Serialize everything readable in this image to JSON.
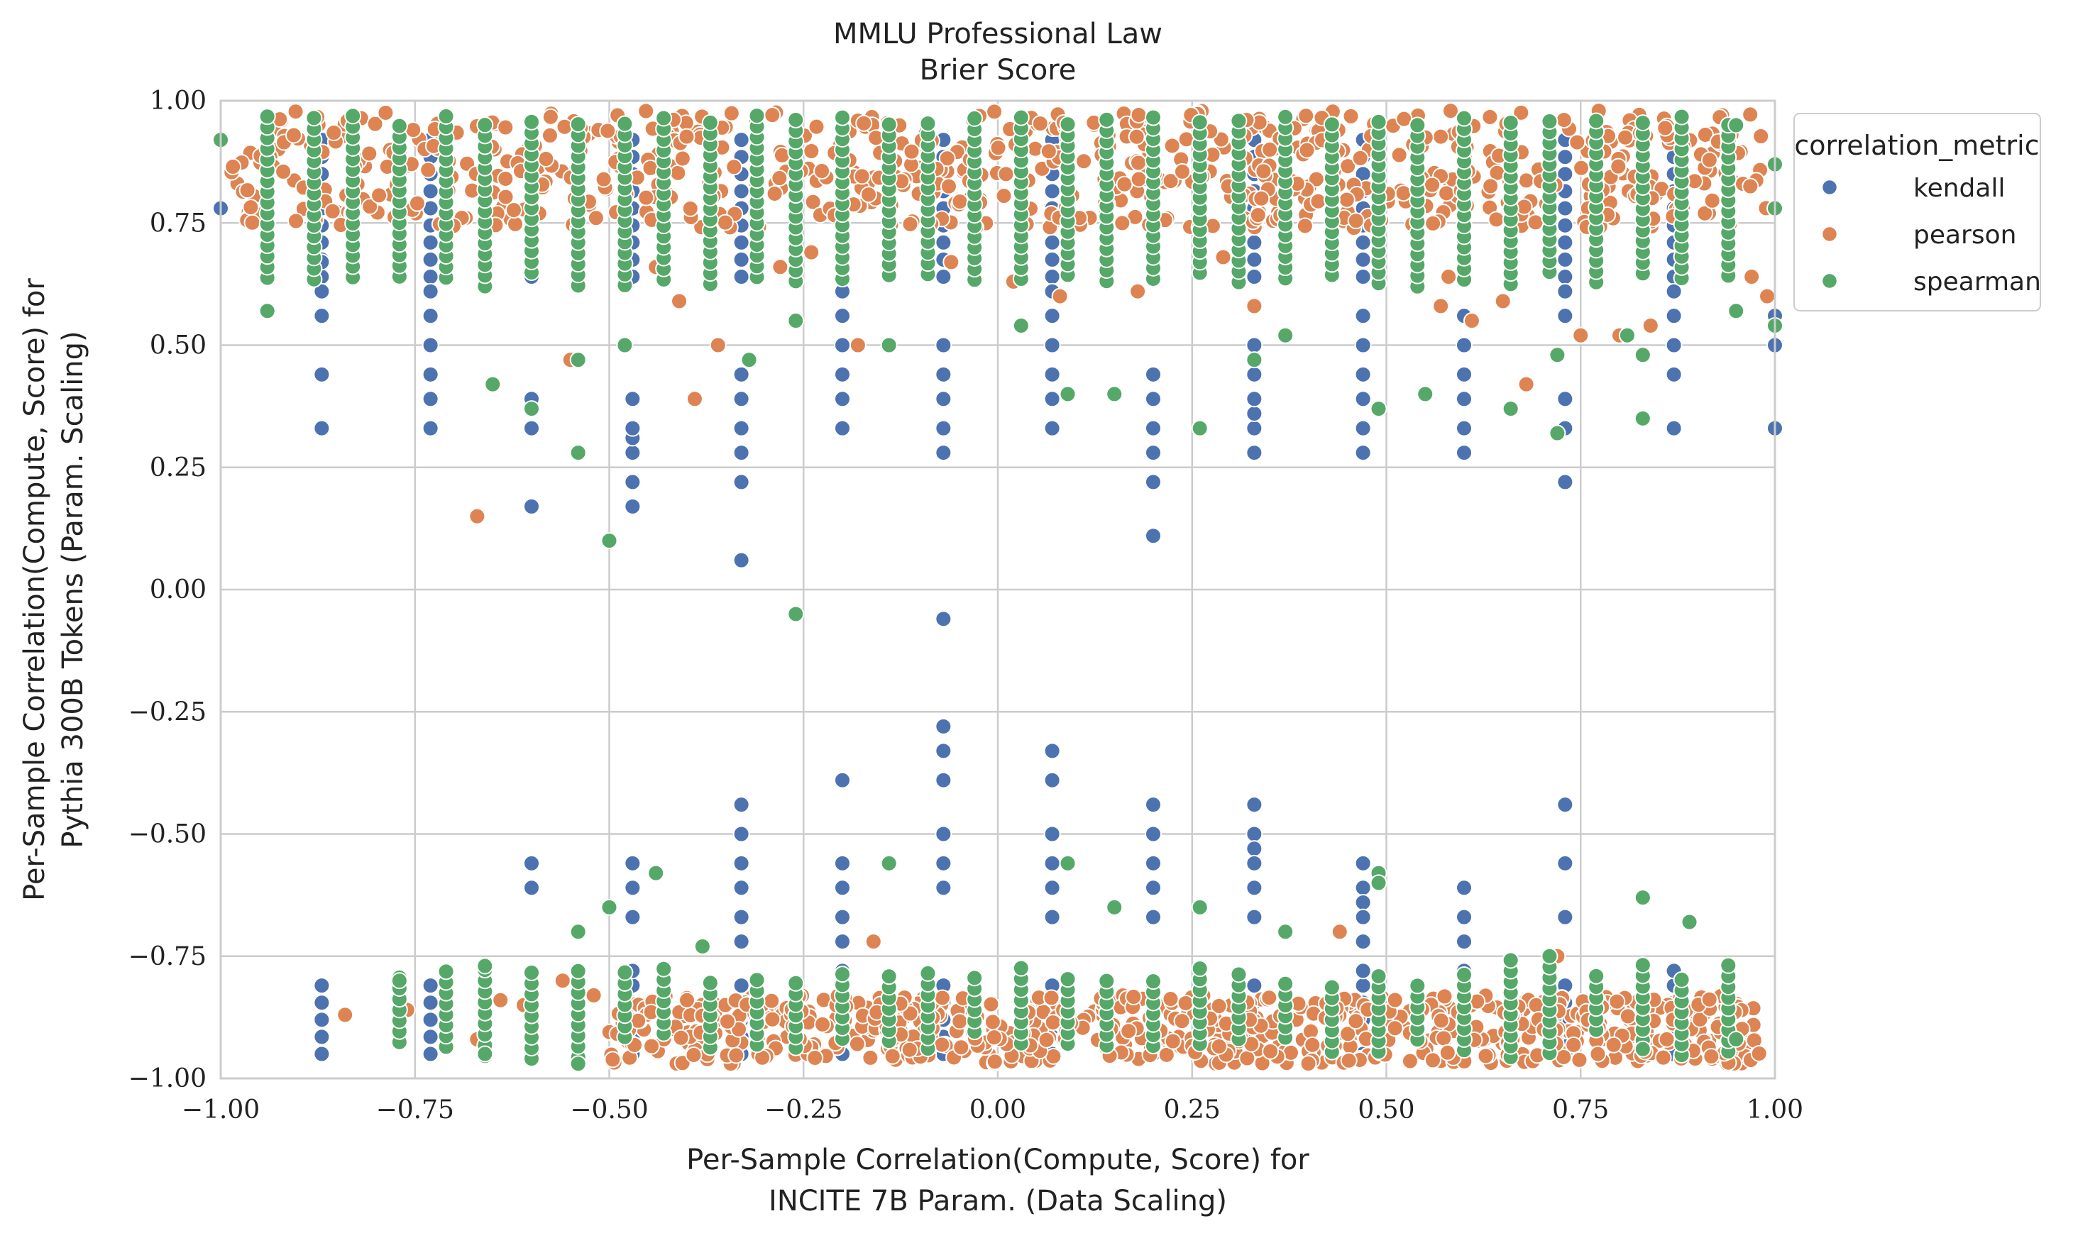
{
  "chart_data": {
    "type": "scatter",
    "title": "MMLU Professional Law",
    "subtitle": "Brier Score",
    "xlabel_line1": "Per-Sample Correlation(Compute, Score) for",
    "xlabel_line2": "INCITE 7B Param. (Data Scaling)",
    "ylabel_line1": "Per-Sample Correlation(Compute, Score) for",
    "ylabel_line2": "Pythia 300B Tokens (Param. Scaling)",
    "xlim": [
      -1.0,
      1.0
    ],
    "ylim": [
      -1.0,
      1.0
    ],
    "x_ticks": [
      -1.0,
      -0.75,
      -0.5,
      -0.25,
      0.0,
      0.25,
      0.5,
      0.75,
      1.0
    ],
    "x_tick_labels": [
      "−1.00",
      "−0.75",
      "−0.50",
      "−0.25",
      "0.00",
      "0.25",
      "0.50",
      "0.75",
      "1.00"
    ],
    "y_ticks": [
      -1.0,
      -0.75,
      -0.5,
      -0.25,
      0.0,
      0.25,
      0.5,
      0.75,
      1.0
    ],
    "y_tick_labels": [
      "−1.00",
      "−0.75",
      "−0.50",
      "−0.25",
      "0.00",
      "0.25",
      "0.50",
      "0.75",
      "1.00"
    ],
    "grid": true,
    "legend": {
      "title": "correlation_metric",
      "placement": "outside upper right",
      "entries": [
        "kendall",
        "pearson",
        "spearman"
      ]
    },
    "series": [
      {
        "name": "kendall",
        "color": "#4c72b0",
        "points": [
          [
            -1.0,
            0.78
          ],
          [
            -0.87,
            0.33
          ],
          [
            -0.87,
            0.44
          ],
          [
            -0.87,
            0.56
          ],
          [
            -0.87,
            0.61
          ],
          [
            -0.87,
            0.67
          ],
          [
            -0.73,
            0.33
          ],
          [
            -0.73,
            0.39
          ],
          [
            -0.73,
            0.44
          ],
          [
            -0.73,
            0.5
          ],
          [
            -0.73,
            0.56
          ],
          [
            -0.73,
            0.61
          ],
          [
            -0.6,
            0.17
          ],
          [
            -0.6,
            0.33
          ],
          [
            -0.6,
            0.39
          ],
          [
            -0.6,
            -0.56
          ],
          [
            -0.6,
            -0.61
          ],
          [
            -0.6,
            -0.83
          ],
          [
            -0.47,
            0.17
          ],
          [
            -0.47,
            0.22
          ],
          [
            -0.47,
            0.28
          ],
          [
            -0.47,
            0.31
          ],
          [
            -0.47,
            0.33
          ],
          [
            -0.47,
            0.39
          ],
          [
            -0.47,
            -0.56
          ],
          [
            -0.47,
            -0.61
          ],
          [
            -0.47,
            -0.67
          ],
          [
            -0.47,
            -0.78
          ],
          [
            -0.33,
            0.06
          ],
          [
            -0.33,
            0.22
          ],
          [
            -0.33,
            0.28
          ],
          [
            -0.33,
            0.33
          ],
          [
            -0.33,
            0.39
          ],
          [
            -0.33,
            0.44
          ],
          [
            -0.33,
            -0.44
          ],
          [
            -0.33,
            -0.5
          ],
          [
            -0.33,
            -0.56
          ],
          [
            -0.33,
            -0.61
          ],
          [
            -0.33,
            -0.67
          ],
          [
            -0.33,
            -0.72
          ],
          [
            -0.2,
            0.33
          ],
          [
            -0.2,
            0.39
          ],
          [
            -0.2,
            0.44
          ],
          [
            -0.2,
            0.5
          ],
          [
            -0.2,
            0.56
          ],
          [
            -0.2,
            0.61
          ],
          [
            -0.2,
            -0.39
          ],
          [
            -0.2,
            -0.56
          ],
          [
            -0.2,
            -0.61
          ],
          [
            -0.2,
            -0.67
          ],
          [
            -0.2,
            -0.72
          ],
          [
            -0.2,
            -0.78
          ],
          [
            -0.07,
            -0.06
          ],
          [
            -0.07,
            0.28
          ],
          [
            -0.07,
            0.33
          ],
          [
            -0.07,
            0.39
          ],
          [
            -0.07,
            0.44
          ],
          [
            -0.07,
            0.5
          ],
          [
            -0.07,
            -0.28
          ],
          [
            -0.07,
            -0.33
          ],
          [
            -0.07,
            -0.39
          ],
          [
            -0.07,
            -0.5
          ],
          [
            -0.07,
            -0.56
          ],
          [
            -0.07,
            -0.61
          ],
          [
            0.07,
            0.33
          ],
          [
            0.07,
            0.39
          ],
          [
            0.07,
            0.44
          ],
          [
            0.07,
            0.5
          ],
          [
            0.07,
            0.56
          ],
          [
            0.07,
            0.61
          ],
          [
            0.07,
            -0.33
          ],
          [
            0.07,
            -0.39
          ],
          [
            0.07,
            -0.5
          ],
          [
            0.07,
            -0.56
          ],
          [
            0.07,
            -0.61
          ],
          [
            0.07,
            -0.67
          ],
          [
            0.2,
            0.11
          ],
          [
            0.2,
            0.22
          ],
          [
            0.2,
            0.28
          ],
          [
            0.2,
            0.33
          ],
          [
            0.2,
            0.39
          ],
          [
            0.2,
            0.44
          ],
          [
            0.2,
            -0.44
          ],
          [
            0.2,
            -0.5
          ],
          [
            0.2,
            -0.56
          ],
          [
            0.2,
            -0.61
          ],
          [
            0.2,
            -0.67
          ],
          [
            0.2,
            -0.94
          ],
          [
            0.33,
            0.28
          ],
          [
            0.33,
            0.33
          ],
          [
            0.33,
            0.36
          ],
          [
            0.33,
            0.39
          ],
          [
            0.33,
            0.44
          ],
          [
            0.33,
            0.5
          ],
          [
            0.33,
            -0.44
          ],
          [
            0.33,
            -0.5
          ],
          [
            0.33,
            -0.53
          ],
          [
            0.33,
            -0.56
          ],
          [
            0.33,
            -0.61
          ],
          [
            0.33,
            -0.67
          ],
          [
            0.47,
            0.28
          ],
          [
            0.47,
            0.33
          ],
          [
            0.47,
            0.39
          ],
          [
            0.47,
            0.44
          ],
          [
            0.47,
            0.5
          ],
          [
            0.47,
            0.56
          ],
          [
            0.47,
            -0.56
          ],
          [
            0.47,
            -0.61
          ],
          [
            0.47,
            -0.64
          ],
          [
            0.47,
            -0.67
          ],
          [
            0.47,
            -0.72
          ],
          [
            0.47,
            -0.78
          ],
          [
            0.6,
            0.28
          ],
          [
            0.6,
            0.33
          ],
          [
            0.6,
            0.39
          ],
          [
            0.6,
            0.44
          ],
          [
            0.6,
            0.5
          ],
          [
            0.6,
            0.56
          ],
          [
            0.6,
            -0.61
          ],
          [
            0.6,
            -0.67
          ],
          [
            0.6,
            -0.72
          ],
          [
            0.6,
            -0.78
          ],
          [
            0.73,
            0.22
          ],
          [
            0.73,
            0.33
          ],
          [
            0.73,
            0.39
          ],
          [
            0.73,
            0.56
          ],
          [
            0.73,
            0.61
          ],
          [
            0.73,
            -0.44
          ],
          [
            0.73,
            -0.56
          ],
          [
            0.73,
            -0.67
          ],
          [
            0.87,
            0.33
          ],
          [
            0.87,
            0.44
          ],
          [
            0.87,
            0.5
          ],
          [
            0.87,
            0.56
          ],
          [
            0.87,
            0.61
          ],
          [
            0.87,
            -0.78
          ],
          [
            1.0,
            0.33
          ],
          [
            1.0,
            0.5
          ],
          [
            1.0,
            0.56
          ]
        ]
      },
      {
        "name": "pearson",
        "color": "#dd8452",
        "points": [
          [
            -0.84,
            -0.87
          ],
          [
            -0.76,
            -0.86
          ],
          [
            -0.71,
            -0.82
          ],
          [
            -0.67,
            0.15
          ],
          [
            -0.67,
            -0.92
          ],
          [
            -0.64,
            -0.84
          ],
          [
            -0.61,
            -0.85
          ],
          [
            -0.55,
            0.47
          ],
          [
            -0.56,
            -0.8
          ],
          [
            -0.52,
            -0.83
          ],
          [
            -0.44,
            0.66
          ],
          [
            -0.41,
            0.59
          ],
          [
            -0.39,
            0.39
          ],
          [
            -0.36,
            0.5
          ],
          [
            -0.4,
            -0.84
          ],
          [
            -0.28,
            0.66
          ],
          [
            -0.24,
            0.69
          ],
          [
            -0.18,
            0.5
          ],
          [
            -0.16,
            -0.72
          ],
          [
            -0.06,
            0.67
          ],
          [
            0.02,
            0.63
          ],
          [
            0.08,
            0.6
          ],
          [
            0.18,
            0.61
          ],
          [
            0.29,
            0.68
          ],
          [
            0.33,
            0.58
          ],
          [
            0.44,
            -0.7
          ],
          [
            0.54,
            0.63
          ],
          [
            0.57,
            0.58
          ],
          [
            0.61,
            0.55
          ],
          [
            0.65,
            0.59
          ],
          [
            0.68,
            0.42
          ],
          [
            0.72,
            -0.75
          ],
          [
            0.75,
            0.52
          ],
          [
            0.8,
            0.52
          ],
          [
            0.84,
            0.54
          ],
          [
            0.88,
            -0.82
          ],
          [
            0.94,
            -0.81
          ],
          [
            0.97,
            0.64
          ],
          [
            0.99,
            0.6
          ],
          [
            0.58,
            0.64
          ]
        ],
        "clusters": [
          {
            "x_min": -0.99,
            "x_max": 0.99,
            "y_min": 0.74,
            "y_max": 0.98,
            "count": 700
          },
          {
            "x_min": -0.5,
            "x_max": 0.98,
            "y_min": -0.97,
            "y_max": -0.83,
            "count": 700
          }
        ]
      },
      {
        "name": "spearman",
        "color": "#55a868",
        "points": [
          [
            -1.0,
            0.92
          ],
          [
            -0.94,
            0.57
          ],
          [
            -0.6,
            0.37
          ],
          [
            -0.54,
            0.28
          ],
          [
            -0.54,
            0.47
          ],
          [
            -0.5,
            0.1
          ],
          [
            -0.48,
            0.5
          ],
          [
            -0.65,
            0.42
          ],
          [
            -0.26,
            0.55
          ],
          [
            -0.26,
            -0.05
          ],
          [
            -0.32,
            0.47
          ],
          [
            -0.14,
            0.5
          ],
          [
            0.03,
            0.54
          ],
          [
            0.09,
            0.4
          ],
          [
            0.15,
            0.4
          ],
          [
            0.26,
            0.33
          ],
          [
            0.33,
            0.47
          ],
          [
            0.37,
            0.52
          ],
          [
            0.49,
            0.37
          ],
          [
            0.55,
            0.4
          ],
          [
            0.66,
            0.37
          ],
          [
            0.72,
            0.32
          ],
          [
            0.72,
            0.48
          ],
          [
            0.81,
            0.52
          ],
          [
            0.83,
            0.35
          ],
          [
            0.83,
            0.48
          ],
          [
            -0.77,
            -0.8
          ],
          [
            -0.66,
            -0.77
          ],
          [
            -0.66,
            -0.95
          ],
          [
            -0.54,
            -0.7
          ],
          [
            -0.54,
            -0.97
          ],
          [
            -0.5,
            -0.65
          ],
          [
            -0.44,
            -0.58
          ],
          [
            -0.38,
            -0.73
          ],
          [
            -0.14,
            -0.56
          ],
          [
            0.09,
            -0.56
          ],
          [
            0.15,
            -0.65
          ],
          [
            0.26,
            -0.65
          ],
          [
            0.49,
            -0.58
          ],
          [
            0.49,
            -0.6
          ],
          [
            0.83,
            -0.63
          ],
          [
            0.89,
            -0.68
          ],
          [
            0.95,
            -0.92
          ],
          [
            0.83,
            -0.94
          ],
          [
            0.37,
            -0.7
          ],
          [
            0.95,
            0.95
          ],
          [
            1.0,
            0.87
          ],
          [
            1.0,
            0.78
          ],
          [
            0.95,
            0.57
          ],
          [
            1.0,
            0.54
          ]
        ],
        "columns": [
          -0.94,
          -0.88,
          -0.83,
          -0.77,
          -0.71,
          -0.66,
          -0.6,
          -0.54,
          -0.48,
          -0.43,
          -0.37,
          -0.31,
          -0.26,
          -0.2,
          -0.14,
          -0.09,
          -0.03,
          0.03,
          0.09,
          0.14,
          0.2,
          0.26,
          0.31,
          0.37,
          0.43,
          0.49,
          0.54,
          0.6,
          0.66,
          0.71,
          0.77,
          0.83,
          0.88,
          0.94
        ],
        "columns_upper_range": [
          0.62,
          0.97
        ],
        "columns_lower_range": [
          -0.96,
          -0.74
        ]
      }
    ]
  }
}
